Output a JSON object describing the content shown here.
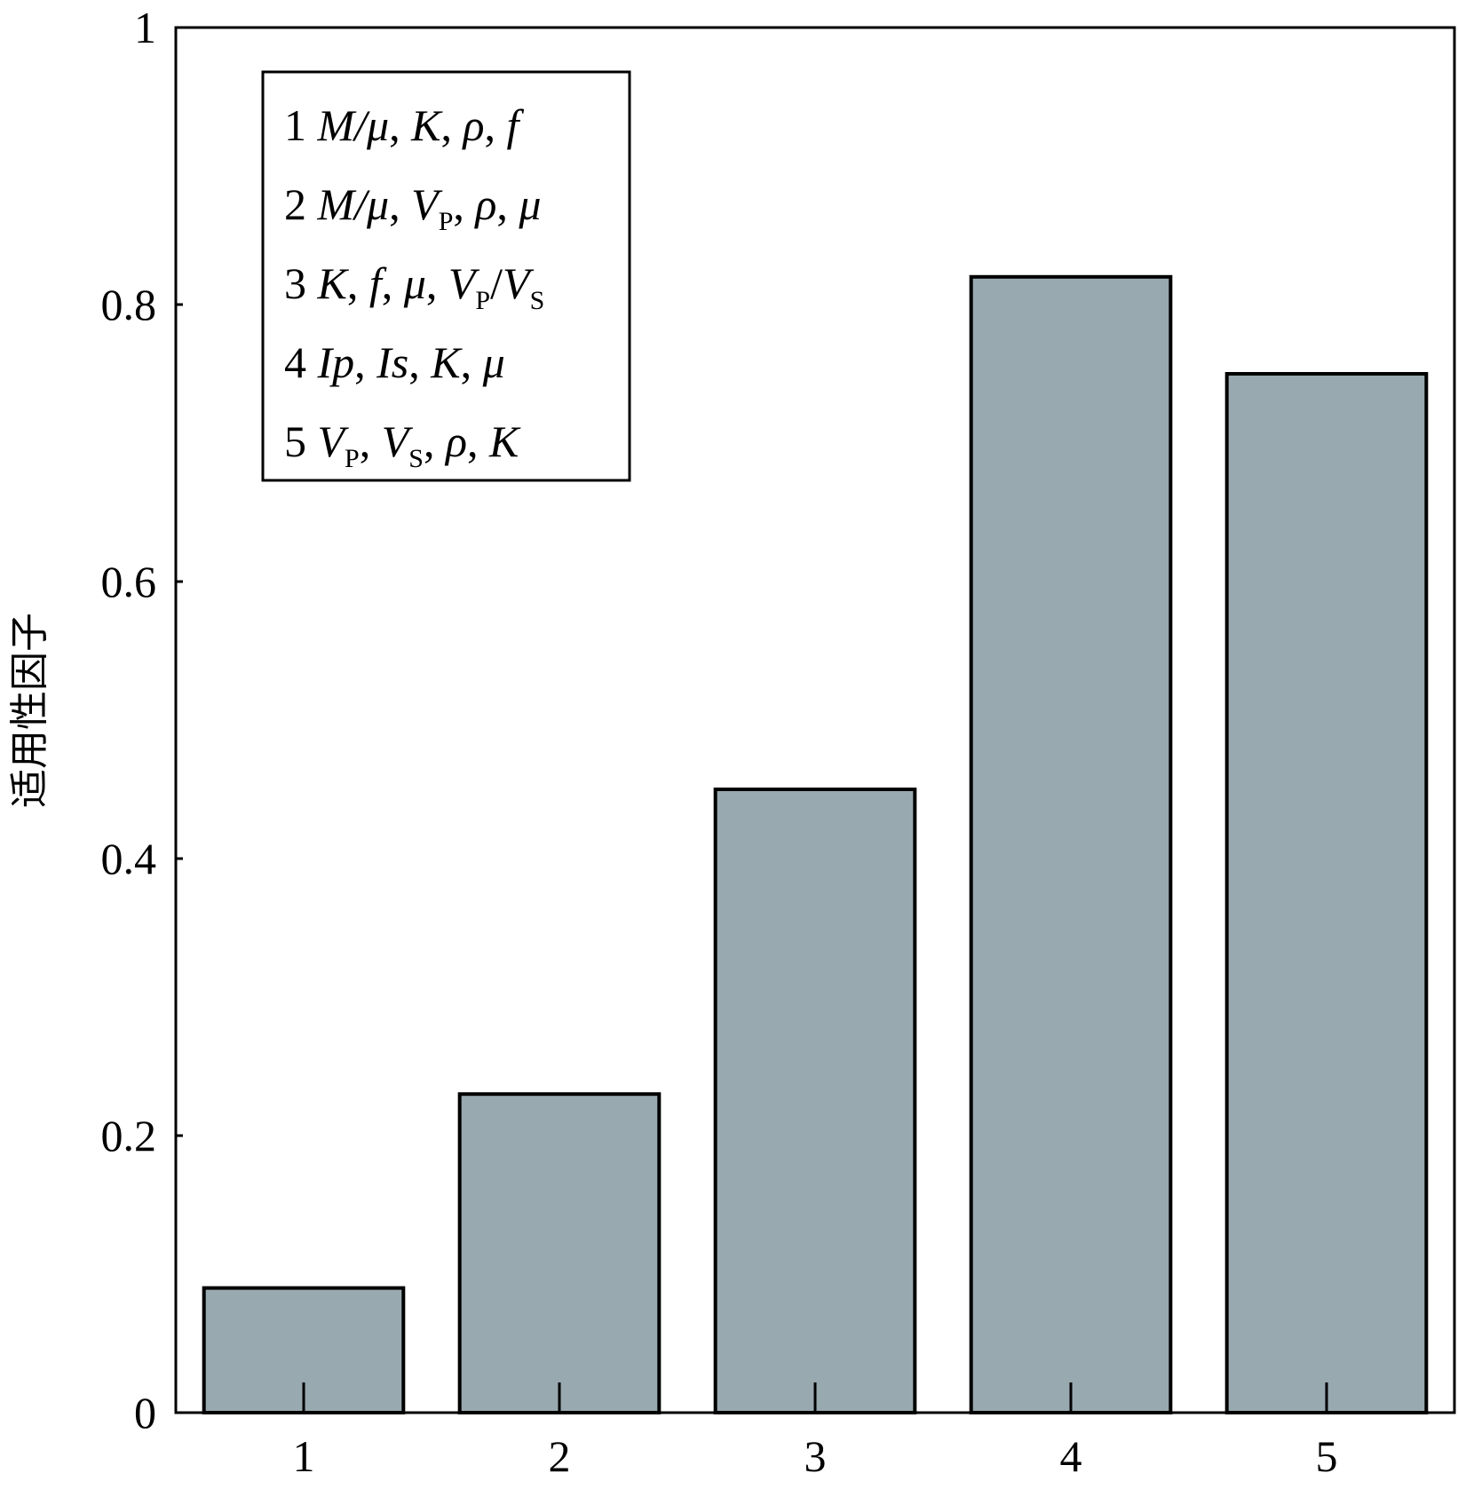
{
  "chart_data": {
    "type": "bar",
    "categories": [
      "1",
      "2",
      "3",
      "4",
      "5"
    ],
    "values": [
      0.09,
      0.23,
      0.45,
      0.82,
      0.75
    ],
    "ylim": [
      0,
      1
    ],
    "yticks": [
      "0",
      "0.2",
      "0.4",
      "0.6",
      "0.8",
      "1"
    ],
    "ytick_values": [
      0,
      0.2,
      0.4,
      0.6,
      0.8,
      1
    ],
    "xlabel": "",
    "ylabel": "适用性因子",
    "bar_color": "#98a9af",
    "grid": false,
    "legend_position": "top-left",
    "legend": [
      {
        "num": "1",
        "parts": [
          [
            "M/μ",
            "it"
          ],
          [
            ", ",
            ""
          ],
          [
            "K",
            "it"
          ],
          [
            ", ",
            ""
          ],
          [
            "ρ",
            "it"
          ],
          [
            ", ",
            ""
          ],
          [
            "f",
            "it"
          ]
        ]
      },
      {
        "num": "2",
        "parts": [
          [
            "M/μ",
            "it"
          ],
          [
            ", ",
            ""
          ],
          [
            "V",
            "it"
          ],
          [
            "P",
            "sub"
          ],
          [
            ", ",
            ""
          ],
          [
            "ρ",
            "it"
          ],
          [
            ", ",
            ""
          ],
          [
            "μ",
            "it"
          ]
        ]
      },
      {
        "num": "3",
        "parts": [
          [
            "K",
            "it"
          ],
          [
            ", ",
            ""
          ],
          [
            "f",
            "it"
          ],
          [
            ", ",
            ""
          ],
          [
            "μ",
            "it"
          ],
          [
            ", ",
            ""
          ],
          [
            "V",
            "it"
          ],
          [
            "P",
            "sub"
          ],
          [
            "/",
            ""
          ],
          [
            "V",
            "it"
          ],
          [
            "S",
            "sub"
          ]
        ]
      },
      {
        "num": "4",
        "parts": [
          [
            "Ip",
            "it"
          ],
          [
            ", ",
            ""
          ],
          [
            "Is",
            "it"
          ],
          [
            ", ",
            ""
          ],
          [
            "K",
            "it"
          ],
          [
            ", ",
            ""
          ],
          [
            "μ",
            "it"
          ]
        ]
      },
      {
        "num": "5",
        "parts": [
          [
            "V",
            "it"
          ],
          [
            "P",
            "sub"
          ],
          [
            ", ",
            ""
          ],
          [
            "V",
            "it"
          ],
          [
            "S",
            "sub"
          ],
          [
            ", ",
            ""
          ],
          [
            "ρ",
            "it"
          ],
          [
            ", ",
            ""
          ],
          [
            "K",
            "it"
          ]
        ]
      }
    ]
  }
}
